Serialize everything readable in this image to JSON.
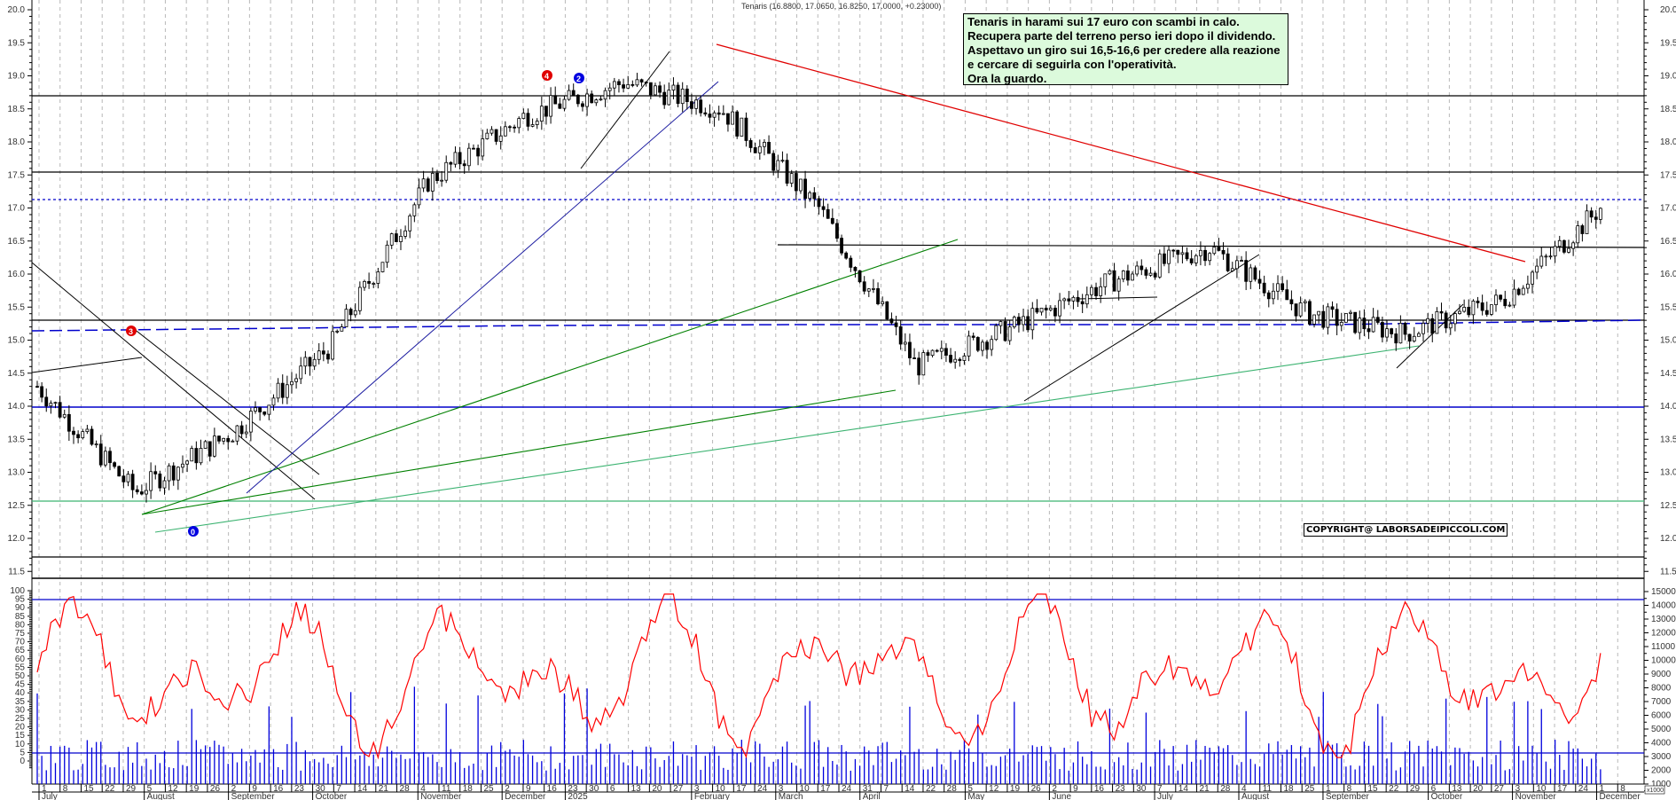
{
  "header": {
    "title": "Tenaris (16.8800, 17.0650, 16.8250, 17.0000, +0.23000)"
  },
  "note": {
    "lines": [
      "Tenaris  in harami sui 17 euro con scambi in calo.",
      "Recupera parte del terreno perso ieri dopo il dividendo.",
      "Aspettavo un giro sui 16,5-16,6 per credere alla reazione",
      "e cercare di seguirla con l'operatività.",
      "Ora la guardo."
    ]
  },
  "copyright": "COPYRIGHT@ LABORSADEIPICCOLI.COM",
  "markers": [
    {
      "label": "3",
      "color": "#e00000"
    },
    {
      "label": "4",
      "color": "#e00000"
    },
    {
      "label": "2",
      "color": "#0000e0"
    },
    {
      "label": "0",
      "color": "#0000e0"
    }
  ],
  "colors": {
    "grid": "#b0b0b0",
    "candle": "#000000",
    "oscillator": "#ff0000",
    "volume": "#0000dd",
    "downtrend": "#e00000",
    "uptrend_green": "#008000",
    "uptrend_lightgreen": "#3cb371",
    "support_blue": "#0000cc",
    "note_bg": "#dcfadc"
  },
  "chart_data": [
    {
      "type": "candlestick",
      "title": "Tenaris (16.8800, 17.0650, 16.8250, 17.0000, +0.23000)",
      "last": {
        "open": 16.88,
        "high": 17.065,
        "low": 16.825,
        "close": 17.0,
        "change": 0.23
      },
      "ylim": [
        11.4,
        20.2
      ],
      "y_ticks": [
        "20.0",
        "19.5",
        "19.0",
        "18.5",
        "18.0",
        "17.5",
        "17.0",
        "16.5",
        "16.0",
        "15.5",
        "15.0",
        "14.5",
        "14.0",
        "13.5",
        "13.0",
        "12.5",
        "12.0",
        "11.5"
      ],
      "x_range": "July 2024 - November 2025",
      "horizontal_levels": [
        {
          "value": 18.7,
          "color": "#000000",
          "style": "solid"
        },
        {
          "value": 17.55,
          "color": "#000000",
          "style": "solid"
        },
        {
          "value": 17.13,
          "color": "#0000cc",
          "style": "dotted"
        },
        {
          "value": 16.38,
          "color": "#000000",
          "style": "solid"
        },
        {
          "value": 15.27,
          "color": "#000000",
          "style": "solid"
        },
        {
          "value": 15.2,
          "color": "#0000cc",
          "style": "dashed"
        },
        {
          "value": 13.95,
          "color": "#0000cc",
          "style": "solid"
        },
        {
          "value": 12.5,
          "color": "#3cb371",
          "style": "solid"
        },
        {
          "value": 11.65,
          "color": "#000000",
          "style": "solid"
        }
      ],
      "approx_closes_by_month": {
        "categories": [
          "Jul24",
          "Aug24",
          "Sep24",
          "Oct24",
          "Nov24",
          "Dec24",
          "Jan25",
          "Feb25",
          "Mar25",
          "Apr25",
          "May25",
          "Jun25",
          "Jul25",
          "Aug25",
          "Sep25",
          "Oct25",
          "Nov25"
        ],
        "values": [
          14.3,
          12.7,
          13.6,
          14.9,
          17.4,
          18.4,
          18.9,
          18.5,
          17.0,
          14.6,
          15.2,
          15.9,
          16.4,
          15.4,
          15.1,
          15.6,
          17.0
        ]
      }
    },
    {
      "type": "line+bar",
      "title": "Oscillator / Volume",
      "left_axis": {
        "ylim": [
          -5,
          100
        ],
        "ticks": [
          "100",
          "95",
          "90",
          "85",
          "80",
          "75",
          "70",
          "65",
          "60",
          "55",
          "50",
          "45",
          "40",
          "35",
          "30",
          "25",
          "20",
          "15",
          "10",
          "5",
          "0"
        ]
      },
      "right_axis": {
        "label": "x1000",
        "ticks": [
          "15000",
          "14000",
          "13000",
          "12000",
          "11000",
          "10000",
          "9000",
          "8000",
          "7000",
          "6000",
          "5000",
          "4000",
          "3000",
          "2000",
          "1000"
        ]
      },
      "levels": [
        95,
        5
      ],
      "series": [
        {
          "name": "Oscillator",
          "color": "#ff0000"
        },
        {
          "name": "Volume",
          "color": "#0000dd"
        }
      ]
    }
  ],
  "x_axis": {
    "day_ticks": [
      "1",
      "8",
      "15",
      "22",
      "29",
      "5",
      "12",
      "19",
      "26",
      "2",
      "9",
      "16",
      "23",
      "30",
      "7",
      "14",
      "21",
      "28",
      "4",
      "11",
      "18",
      "25",
      "2",
      "9",
      "16",
      "23",
      "30",
      "6",
      "13",
      "20",
      "27",
      "3",
      "10",
      "17",
      "24",
      "3",
      "10",
      "17",
      "24",
      "31",
      "7",
      "14",
      "22",
      "28",
      "5",
      "12",
      "19",
      "26",
      "2",
      "9",
      "16",
      "23",
      "30",
      "7",
      "14",
      "21",
      "28",
      "4",
      "11",
      "18",
      "25",
      "1",
      "8",
      "15",
      "22",
      "29",
      "6",
      "13",
      "20",
      "27",
      "3",
      "10",
      "17",
      "24",
      "1",
      "8"
    ],
    "months": [
      "July",
      "August",
      "September",
      "October",
      "November",
      "December",
      "2025",
      "February",
      "March",
      "April",
      "May",
      "June",
      "July",
      "August",
      "September",
      "October",
      "November",
      "December"
    ]
  }
}
